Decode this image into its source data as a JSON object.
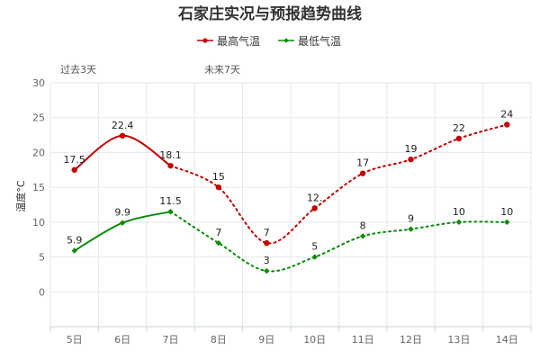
{
  "chart_data": {
    "type": "line",
    "title": "石家庄实况与预报趋势曲线",
    "ylabel": "温度°C",
    "xlabel": "",
    "ylim": [
      -5,
      30
    ],
    "yticks": [
      0,
      5,
      10,
      15,
      20,
      25,
      30
    ],
    "categories": [
      "5日",
      "6日",
      "7日",
      "8日",
      "9日",
      "10日",
      "11日",
      "12日",
      "13日",
      "14日"
    ],
    "periods": [
      {
        "label": "过去3天",
        "start_index": 0
      },
      {
        "label": "未来7天",
        "start_index": 3
      }
    ],
    "actual_days": 3,
    "legend_position": "top-center",
    "series": [
      {
        "name": "最高气温",
        "color": "#c00000",
        "values": [
          17.5,
          22.4,
          18.1,
          15,
          7,
          12,
          17,
          19,
          22,
          24
        ],
        "labels": [
          "17.5",
          "22.4",
          "18.1",
          "15",
          "7",
          "12.",
          "17",
          "19",
          "22",
          "24"
        ]
      },
      {
        "name": "最低气温",
        "color": "#0a8a0a",
        "values": [
          5.9,
          9.9,
          11.5,
          7,
          3,
          5,
          8,
          9,
          10,
          10
        ],
        "labels": [
          "5.9",
          "9.9",
          "11.5",
          "7",
          "3",
          "5",
          "8",
          "9",
          "10",
          "10"
        ]
      }
    ]
  }
}
